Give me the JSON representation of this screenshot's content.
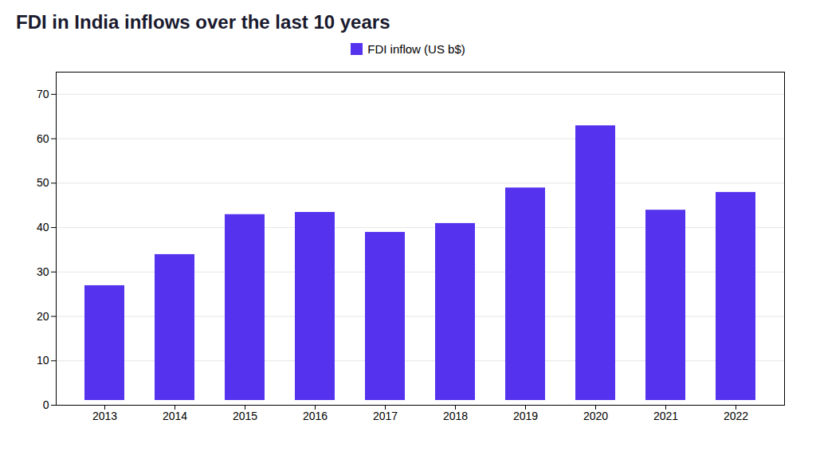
{
  "chart_data": {
    "type": "bar",
    "title": "FDI in India inflows over the last 10 years",
    "categories": [
      "2013",
      "2014",
      "2015",
      "2016",
      "2017",
      "2018",
      "2019",
      "2020",
      "2021",
      "2022"
    ],
    "series": [
      {
        "name": "FDI inflow (US b$)",
        "color": "#5533ee",
        "values": [
          28,
          35,
          44,
          44.5,
          40,
          42,
          50,
          64,
          45,
          49
        ]
      }
    ],
    "ylim": [
      0,
      75
    ],
    "yticks": [
      0,
      10,
      20,
      30,
      40,
      50,
      60,
      70
    ],
    "grid": true,
    "legend": "upper center"
  }
}
